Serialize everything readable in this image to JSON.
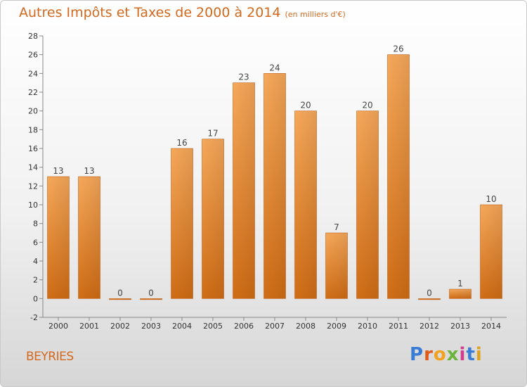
{
  "page": {
    "title": "Autres Impôts et Taxes de 2000 à 2014",
    "unit": "(en milliers d'€)",
    "commune": "BEYRIES",
    "logo": {
      "text": "Proxiti",
      "colors": [
        "#3a7bd5",
        "#e05a1a",
        "#f3a21d",
        "#6bb33a",
        "#d33b8f",
        "#3a7bd5",
        "#e0a21d"
      ]
    }
  },
  "chart_data": {
    "type": "bar",
    "title": "Autres Impôts et Taxes de 2000 à 2014",
    "subtitle": "(en milliers d'€)",
    "categories": [
      "2000",
      "2001",
      "2002",
      "2003",
      "2004",
      "2005",
      "2006",
      "2007",
      "2008",
      "2009",
      "2010",
      "2011",
      "2012",
      "2013",
      "2014"
    ],
    "values": [
      13,
      13,
      0,
      0,
      16,
      17,
      23,
      24,
      20,
      7,
      20,
      26,
      0,
      1,
      10
    ],
    "data_labels": [
      "13",
      "13",
      "0",
      "0",
      "16",
      "17",
      "23",
      "24",
      "20",
      "7",
      "20",
      "26",
      "0",
      "1",
      "10"
    ],
    "xlabel": "",
    "ylabel": "",
    "ylim": [
      -2,
      28
    ],
    "yticks": [
      "-2",
      "0",
      "2",
      "4",
      "6",
      "8",
      "10",
      "12",
      "14",
      "16",
      "18",
      "20",
      "22",
      "24",
      "26",
      "28"
    ],
    "grid": false,
    "colors": {
      "bar_top": "#f6a85a",
      "bar_bottom": "#d06d15",
      "axis": "#888888"
    }
  }
}
